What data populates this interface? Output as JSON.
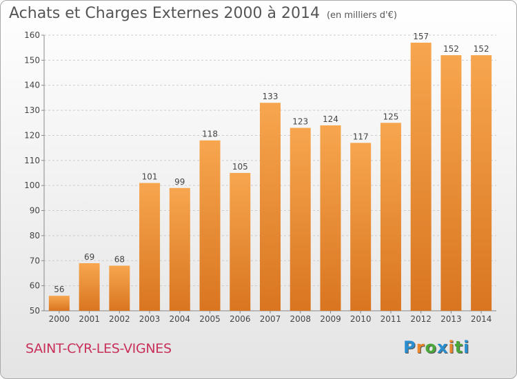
{
  "chart_data": {
    "type": "bar",
    "title": "Achats et Charges Externes 2000 à 2014",
    "subtitle": "(en milliers d'€)",
    "categories": [
      "2000",
      "2001",
      "2002",
      "2003",
      "2004",
      "2005",
      "2006",
      "2007",
      "2008",
      "2009",
      "2010",
      "2011",
      "2012",
      "2013",
      "2014"
    ],
    "values": [
      56,
      69,
      68,
      101,
      99,
      118,
      105,
      133,
      123,
      124,
      117,
      125,
      157,
      152,
      152
    ],
    "ylim": [
      50,
      160
    ],
    "yticks": [
      50,
      60,
      70,
      80,
      90,
      100,
      110,
      120,
      130,
      140,
      150,
      160
    ],
    "grid": true,
    "bar_color_top": "#f7a64f",
    "bar_color_bottom": "#d97520"
  },
  "commune": "SAINT-CYR-LES-VIGNES",
  "logo": {
    "text": "Proxiti",
    "letters": [
      "P",
      "r",
      "o",
      "x",
      "i",
      "t",
      "i"
    ],
    "colors": [
      "#2a8fd0",
      "#e9862b",
      "#4aa83a",
      "#2a8fd0",
      "#e9862b",
      "#4aa83a",
      "#2a8fd0"
    ]
  },
  "colors": {
    "commune": "#c8305a"
  }
}
